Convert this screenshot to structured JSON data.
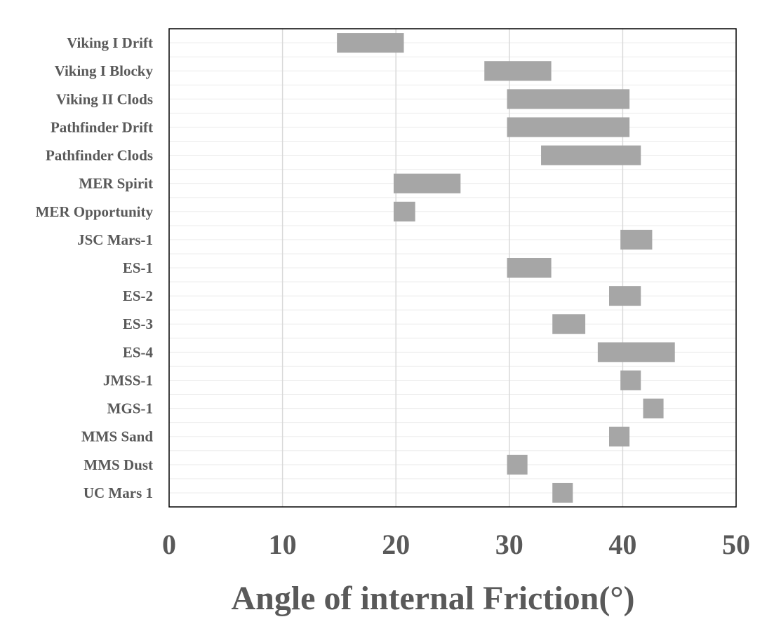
{
  "chart_data": {
    "type": "bar",
    "orientation": "horizontal-range",
    "xlabel": "Angle of internal Friction(°)",
    "xlim": [
      0,
      50
    ],
    "xticks": [
      0,
      10,
      20,
      30,
      40,
      50
    ],
    "grid": true,
    "colors": {
      "bar": "#a6a6a6",
      "grid": "#d9d9d9",
      "text": "#595959",
      "frame": "#000000"
    },
    "categories": [
      "Viking I Drift",
      "Viking I Blocky",
      "Viking II Clods",
      "Pathfinder Drift",
      "Pathfinder Clods",
      "MER Spirit",
      "MER Opportunity",
      "JSC Mars-1",
      "ES-1",
      "ES-2",
      "ES-3",
      "ES-4",
      "JMSS-1",
      "MGS-1",
      "MMS Sand",
      "MMS Dust",
      "UC Mars 1"
    ],
    "ranges": [
      [
        14.8,
        20.7
      ],
      [
        27.8,
        33.7
      ],
      [
        29.8,
        40.6
      ],
      [
        29.8,
        40.6
      ],
      [
        32.8,
        41.6
      ],
      [
        19.8,
        25.7
      ],
      [
        19.8,
        21.7
      ],
      [
        39.8,
        42.6
      ],
      [
        29.8,
        33.7
      ],
      [
        38.8,
        41.6
      ],
      [
        33.8,
        36.7
      ],
      [
        37.8,
        44.6
      ],
      [
        39.8,
        41.6
      ],
      [
        41.8,
        43.6
      ],
      [
        38.8,
        40.6
      ],
      [
        29.8,
        31.6
      ],
      [
        33.8,
        35.6
      ]
    ]
  }
}
